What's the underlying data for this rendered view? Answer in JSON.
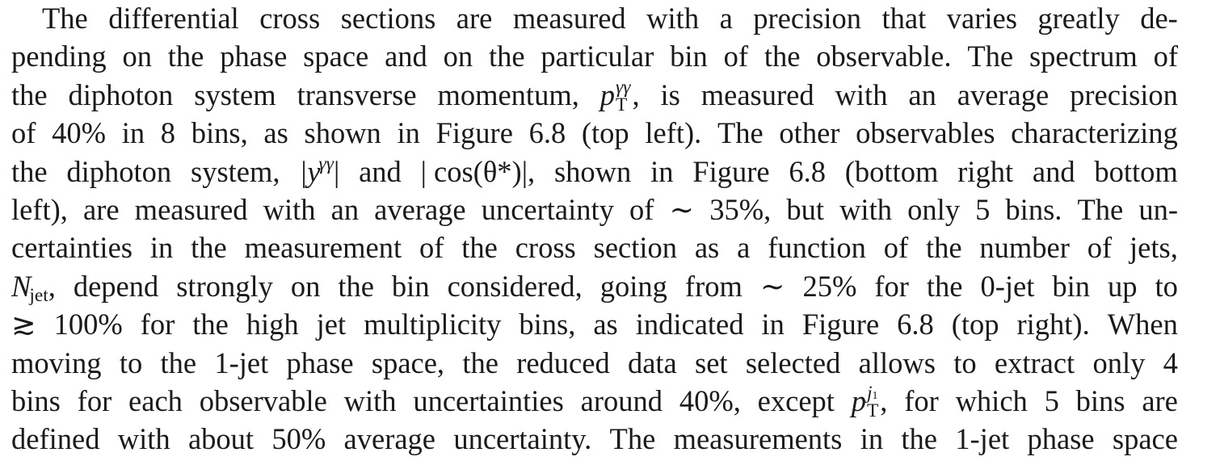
{
  "paragraph": {
    "lines": [
      {
        "words": [
          "The",
          "differential",
          "cross",
          "sections",
          "are",
          "measured",
          "with",
          "a",
          "precision",
          "that",
          "varies",
          "greatly",
          "de-"
        ]
      },
      {
        "words": [
          "pending",
          "on",
          "the",
          "phase",
          "space",
          "and",
          "on",
          "the",
          "particular",
          "bin",
          "of",
          "the",
          "observable.",
          "The",
          "spectrum",
          "of"
        ]
      },
      {
        "words_before": [
          "the",
          "diphoton",
          "system",
          "transverse",
          "momentum,"
        ],
        "math": {
          "base": "p",
          "sup": "γγ",
          "sub": "T",
          "after": ","
        },
        "words_after": [
          "is",
          "measured",
          "with",
          "an",
          "average",
          "precision"
        ]
      },
      {
        "words": [
          "of",
          "40%",
          "in",
          "8",
          "bins,",
          "as",
          "shown",
          "in",
          "Figure",
          "6.8",
          "(top",
          "left).",
          "The",
          "other",
          "observables",
          "characterizing"
        ]
      },
      {
        "words_before": [
          "the",
          "diphoton",
          "system,"
        ],
        "math1": {
          "text": "|y",
          "sup": "γγ",
          "after": "|"
        },
        "word_and": "and",
        "math2": "| cos(θ*)|,",
        "words_after": [
          "shown",
          "in",
          "Figure",
          "6.8",
          "(bottom",
          "right",
          "and",
          "bottom"
        ]
      },
      {
        "words": [
          "left),",
          "are",
          "measured",
          "with",
          "an",
          "average",
          "uncertainty",
          "of",
          "∼",
          "35%,",
          "but",
          "with",
          "only",
          "5",
          "bins.",
          "The",
          "un-"
        ]
      },
      {
        "words": [
          "certainties",
          "in",
          "the",
          "measurement",
          "of",
          "the",
          "cross",
          "section",
          "as",
          "a",
          "function",
          "of",
          "the",
          "number",
          "of",
          "jets,"
        ]
      },
      {
        "math": {
          "base": "N",
          "sub": "jet",
          "after": ","
        },
        "words_after": [
          "depend",
          "strongly",
          "on",
          "the",
          "bin",
          "considered,",
          "going",
          "from",
          "∼",
          "25%",
          "for",
          "the",
          "0-jet",
          "bin",
          "up",
          "to"
        ]
      },
      {
        "words": [
          "≳",
          "100%",
          "for",
          "the",
          "high",
          "jet",
          "multiplicity",
          "bins,",
          "as",
          "indicated",
          "in",
          "Figure",
          "6.8",
          "(top",
          "right).",
          "When"
        ]
      },
      {
        "words": [
          "moving",
          "to",
          "the",
          "1-jet",
          "phase",
          "space,",
          "the",
          "reduced",
          "data",
          "set",
          "selected",
          "allows",
          "to",
          "extract",
          "only",
          "4"
        ]
      },
      {
        "words_before": [
          "bins",
          "for",
          "each",
          "observable",
          "with",
          "uncertainties",
          "around",
          "40%,",
          "except"
        ],
        "math": {
          "base": "p",
          "sup": "j1",
          "sub": "T",
          "after": ","
        },
        "words_after": [
          "for",
          "which",
          "5",
          "bins",
          "are"
        ]
      },
      {
        "words": [
          "defined",
          "with",
          "about",
          "50%",
          "average",
          "uncertainty.",
          "The",
          "measurements",
          "in",
          "the",
          "1-jet",
          "phase",
          "space"
        ]
      }
    ]
  }
}
